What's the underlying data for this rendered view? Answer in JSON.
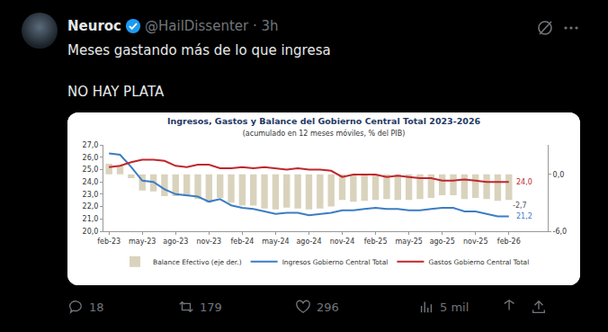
{
  "tweet": {
    "name": "Neuroc",
    "meta": "@HailDissenter · 3h",
    "text": [
      "Meses gastando más de lo que ingresa",
      "NO HAY PLATA"
    ],
    "stats": {
      "replies": 18,
      "retweets": 179,
      "likes": 296,
      "views": "5 mil"
    }
  },
  "chart_data": {
    "type": "combo",
    "title": "Ingresos, Gastos y Balance del Gobierno Central Total 2023-2026",
    "subtitle": "(acumulado en 12 meses móviles, % del PIB)",
    "categories": [
      "feb-23",
      null,
      null,
      "may-23",
      null,
      null,
      "ago-23",
      null,
      null,
      "nov-23",
      null,
      null,
      "feb-24",
      null,
      null,
      "may-24",
      null,
      null,
      "ago-24",
      null,
      null,
      "nov-24",
      null,
      null,
      "feb-25",
      null,
      null,
      "may-25",
      null,
      null,
      "ago-25",
      null,
      null,
      "nov-25",
      null,
      null,
      "feb-26"
    ],
    "ylim": [
      20,
      27
    ],
    "yticks": [
      {
        "value": 20,
        "label": "20,0"
      },
      {
        "value": 21,
        "label": "21,0"
      },
      {
        "value": 22,
        "label": "22,0"
      },
      {
        "value": 23,
        "label": "23,0"
      },
      {
        "value": 24,
        "label": "24,0"
      },
      {
        "value": 25,
        "label": "25,0"
      },
      {
        "value": 26,
        "label": "26,0"
      },
      {
        "value": 27,
        "label": "27,0"
      }
    ],
    "y2lim": [
      -6,
      3.1
    ],
    "y2ticks": [
      {
        "value": 0,
        "label": "0,0"
      },
      {
        "value": -6,
        "label": "-6,0"
      }
    ],
    "grid": false,
    "legend": "bottom",
    "series": [
      {
        "name": "Balance Efectivo (eje der.)",
        "type": "bar",
        "axis": "y2",
        "color": "#d9d3bd",
        "values": [
          1.1,
          0.9,
          -0.4,
          -1.7,
          -1.8,
          -2.3,
          -2.3,
          -2.3,
          -2.6,
          -3.0,
          -2.5,
          -3.0,
          -3.3,
          -3.3,
          -3.6,
          -3.7,
          -3.5,
          -3.6,
          -3.7,
          -3.6,
          -3.4,
          -2.7,
          -2.9,
          -2.8,
          -2.7,
          -2.6,
          -2.7,
          -2.7,
          -2.6,
          -2.5,
          -2.2,
          -2.2,
          -2.6,
          -2.5,
          -2.6,
          -2.8,
          -2.7
        ],
        "value_labels": [
          null,
          null,
          null,
          null,
          null,
          null,
          null,
          null,
          null,
          null,
          null,
          null,
          null,
          null,
          null,
          null,
          null,
          null,
          null,
          null,
          null,
          null,
          null,
          null,
          null,
          null,
          null,
          null,
          null,
          null,
          null,
          null,
          null,
          null,
          null,
          null,
          "-2,7"
        ]
      },
      {
        "name": "Ingresos Gobierno Central Total",
        "type": "line",
        "color": "#3b7dc4",
        "values": [
          26.3,
          26.2,
          25.2,
          24.1,
          24.0,
          23.4,
          23.0,
          22.9,
          22.8,
          22.4,
          22.6,
          22.1,
          21.9,
          21.8,
          21.6,
          21.4,
          21.5,
          21.5,
          21.3,
          21.4,
          21.5,
          21.7,
          21.7,
          21.8,
          21.9,
          21.8,
          21.8,
          21.7,
          21.7,
          21.8,
          21.9,
          21.9,
          21.6,
          21.6,
          21.4,
          21.2,
          21.2
        ],
        "value_labels": [
          null,
          null,
          null,
          null,
          null,
          null,
          null,
          null,
          null,
          null,
          null,
          null,
          null,
          null,
          null,
          null,
          null,
          null,
          null,
          null,
          null,
          null,
          null,
          null,
          null,
          null,
          null,
          null,
          null,
          null,
          null,
          null,
          null,
          null,
          null,
          null,
          "21,2"
        ]
      },
      {
        "name": "Gastos Gobierno Central Total",
        "type": "line",
        "color": "#c0272d",
        "values": [
          25.2,
          25.3,
          25.6,
          25.8,
          25.8,
          25.7,
          25.3,
          25.2,
          25.4,
          25.4,
          25.1,
          25.1,
          25.2,
          25.1,
          25.2,
          25.1,
          25.0,
          25.1,
          25.0,
          25.0,
          24.9,
          24.4,
          24.6,
          24.6,
          24.6,
          24.4,
          24.5,
          24.4,
          24.3,
          24.3,
          24.1,
          24.1,
          24.2,
          24.1,
          24.0,
          24.0,
          24.0
        ],
        "value_labels": [
          null,
          null,
          null,
          null,
          null,
          null,
          null,
          null,
          null,
          null,
          null,
          null,
          null,
          null,
          null,
          null,
          null,
          null,
          null,
          null,
          null,
          null,
          null,
          null,
          null,
          null,
          null,
          null,
          null,
          null,
          null,
          null,
          null,
          null,
          null,
          null,
          "24,0"
        ]
      }
    ]
  }
}
